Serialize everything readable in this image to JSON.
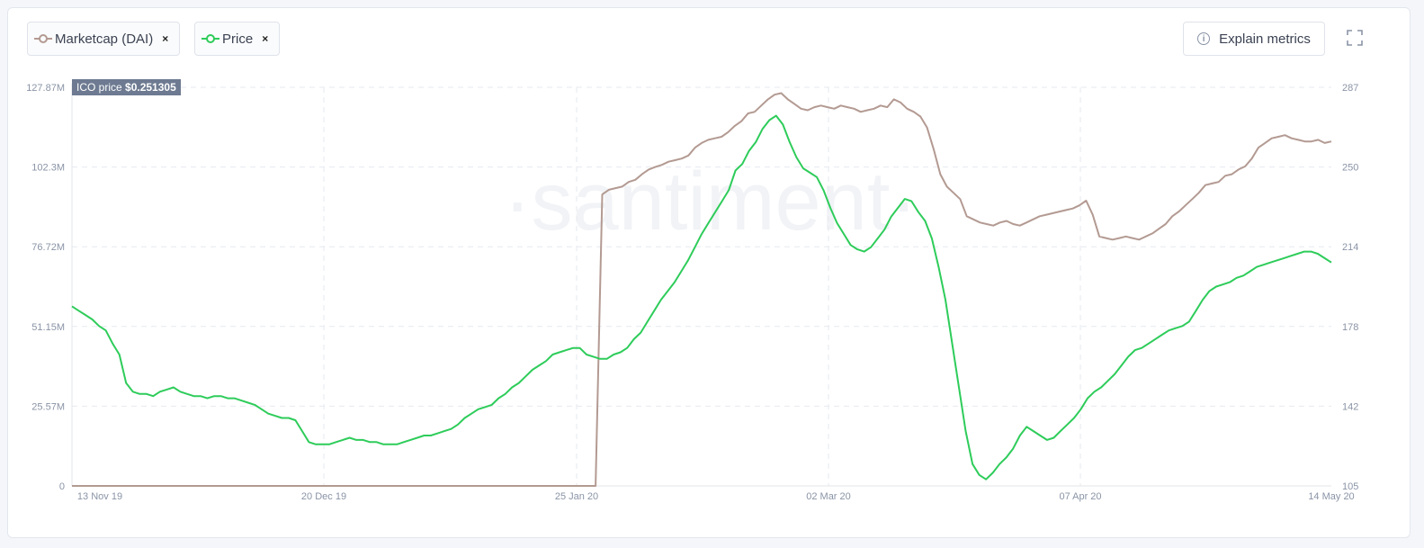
{
  "legend": [
    {
      "label": "Marketcap (DAI)",
      "close": "×",
      "color": "#b39a92"
    },
    {
      "label": "Price",
      "close": "×",
      "color": "#2ecc5a"
    }
  ],
  "explain_label": "Explain metrics",
  "ico": {
    "label": "ICO price",
    "value": "$0.251305"
  },
  "watermark": "·santiment·",
  "chart_data": {
    "type": "line",
    "x_ticks": [
      "13 Nov 19",
      "20 Dec 19",
      "25 Jan 20",
      "02 Mar 20",
      "07 Apr 20",
      "14 May 20"
    ],
    "y_left_ticks": [
      "0",
      "25.57M",
      "51.15M",
      "76.72M",
      "102.3M",
      "127.87M"
    ],
    "y_right_ticks": [
      "105",
      "142",
      "178",
      "214",
      "250",
      "287"
    ],
    "y_left_range": [
      0,
      127.87
    ],
    "y_right_range": [
      105,
      287
    ],
    "grid": true,
    "series": [
      {
        "name": "Marketcap (DAI)",
        "axis": "left",
        "unit": "M",
        "color": "#b39a92",
        "values": [
          0,
          0,
          0,
          0,
          0,
          0,
          0,
          0,
          0,
          0,
          0,
          0,
          0,
          0,
          0,
          0,
          0,
          0,
          0,
          0,
          0,
          0,
          0,
          0,
          0,
          0,
          0,
          0,
          0,
          0,
          0,
          0,
          0,
          0,
          0,
          0,
          0,
          0,
          0,
          0,
          0,
          0,
          0,
          0,
          0,
          0,
          0,
          0,
          0,
          0,
          0,
          0,
          0,
          0,
          0,
          0,
          0,
          0,
          0,
          0,
          0,
          0,
          0,
          0,
          0,
          0,
          0,
          0,
          0,
          0,
          0,
          0,
          0,
          0,
          0,
          0,
          0,
          0,
          0,
          0,
          93.5,
          95.0,
          95.5,
          96.0,
          97.5,
          98.2,
          100.0,
          101.5,
          102.3,
          103.0,
          104.0,
          104.5,
          105.0,
          106.0,
          108.5,
          110.0,
          111.0,
          111.5,
          112.0,
          113.5,
          115.5,
          117.0,
          119.5,
          120.0,
          122.0,
          124.0,
          125.5,
          126.0,
          124.0,
          122.5,
          121.0,
          120.5,
          121.5,
          122.0,
          121.5,
          121.0,
          122.0,
          121.5,
          121.0,
          120.0,
          120.5,
          121.0,
          122.0,
          121.5,
          124.0,
          123.0,
          121.0,
          120.0,
          118.5,
          115.0,
          108.0,
          100.0,
          96.0,
          94.0,
          92.0,
          86.5,
          85.5,
          84.5,
          84.0,
          83.5,
          84.5,
          85.0,
          84.0,
          83.5,
          84.5,
          85.5,
          86.5,
          87.0,
          87.5,
          88.0,
          88.5,
          89.0,
          90.0,
          91.5,
          87.0,
          80.0,
          79.5,
          79.0,
          79.5,
          80.0,
          79.5,
          79.0,
          80.0,
          81.0,
          82.5,
          84.0,
          86.5,
          88.0,
          90.0,
          92.0,
          94.0,
          96.5,
          97.0,
          97.5,
          99.5,
          100.0,
          101.5,
          102.5,
          105.0,
          108.5,
          110.0,
          111.5,
          112.0,
          112.5,
          111.5,
          111.0,
          110.5,
          110.5,
          111.0,
          110.0,
          110.5
        ]
      },
      {
        "name": "Price",
        "axis": "right",
        "unit": "",
        "color": "#2ecc5a",
        "values": [
          187,
          185,
          183,
          181,
          178,
          176,
          170,
          165,
          152,
          148,
          147,
          147,
          146,
          148,
          149,
          150,
          148,
          147,
          146,
          146,
          145,
          146,
          146,
          145,
          145,
          144,
          143,
          142,
          140,
          138,
          137,
          136,
          136,
          135,
          130,
          125,
          124,
          124,
          124,
          125,
          126,
          127,
          126,
          126,
          125,
          125,
          124,
          124,
          124,
          125,
          126,
          127,
          128,
          128,
          129,
          130,
          131,
          133,
          136,
          138,
          140,
          141,
          142,
          145,
          147,
          150,
          152,
          155,
          158,
          160,
          162,
          165,
          166,
          167,
          168,
          168,
          165,
          164,
          163,
          163,
          165,
          166,
          168,
          172,
          175,
          180,
          185,
          190,
          194,
          198,
          203,
          208,
          214,
          220,
          225,
          230,
          235,
          240,
          249,
          252,
          258,
          262,
          268,
          272,
          274,
          270,
          262,
          255,
          250,
          248,
          246,
          240,
          232,
          225,
          220,
          215,
          213,
          212,
          214,
          218,
          222,
          228,
          232,
          236,
          235,
          230,
          226,
          218,
          205,
          190,
          170,
          150,
          130,
          115,
          110,
          108,
          111,
          115,
          118,
          122,
          128,
          132,
          130,
          128,
          126,
          127,
          130,
          133,
          136,
          140,
          145,
          148,
          150,
          153,
          156,
          160,
          164,
          167,
          168,
          170,
          172,
          174,
          176,
          177,
          178,
          180,
          185,
          190,
          194,
          196,
          197,
          198,
          200,
          201,
          203,
          205,
          206,
          207,
          208,
          209,
          210,
          211,
          212,
          212,
          211,
          209,
          207
        ]
      }
    ]
  }
}
